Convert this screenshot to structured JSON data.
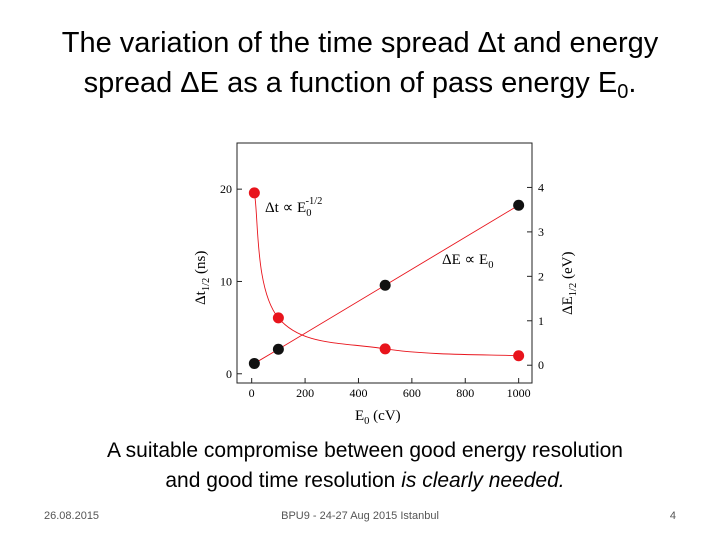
{
  "slide": {
    "title_line1": "The variation of the time spread Δt and energy",
    "title_line2": "spread ΔE as a function of pass energy E",
    "title_sub": "0",
    "title_end": ".",
    "caption_line1": "A suitable compromise between good energy resolution",
    "caption_line2": "and good time resolution ",
    "caption_italic": "is clearly needed.",
    "footer_date": "26.08.2015",
    "footer_event": "BPU9 - 24-27 Aug 2015 Istanbul",
    "footer_page": "4"
  },
  "chart_data": {
    "type": "scatter",
    "x_label": {
      "main": "E",
      "sub": "0",
      "suffix": " (cV)"
    },
    "y_label": {
      "main": "Δt",
      "sub": "1/2",
      "suffix": " (ns)"
    },
    "y2_label": {
      "main": "ΔE",
      "sub": "1/2",
      "suffix": " (eV)"
    },
    "annotations": [
      {
        "main": "Δt ∝ E",
        "sub": "0",
        "sup": "-1/2"
      },
      {
        "main": "ΔE ∝ E",
        "sub": "0"
      }
    ],
    "x": [
      10,
      100,
      500,
      1000
    ],
    "series": [
      {
        "name": "Δt",
        "color": "#e8141c",
        "values": [
          19.6,
          6.05,
          2.7,
          1.95
        ]
      },
      {
        "name": "ΔE",
        "color": "#111111",
        "axis": "y2",
        "values": [
          0.04,
          0.36,
          1.8,
          3.6
        ]
      }
    ],
    "xlim": [
      -55,
      1050
    ],
    "xticks": [
      0,
      200,
      400,
      600,
      800,
      1000
    ],
    "ylim": [
      -1,
      25
    ],
    "yticks": [
      0,
      10,
      20
    ],
    "y2lim": [
      -0.4,
      5
    ],
    "y2ticks": [
      0,
      1,
      2,
      3,
      4
    ]
  }
}
